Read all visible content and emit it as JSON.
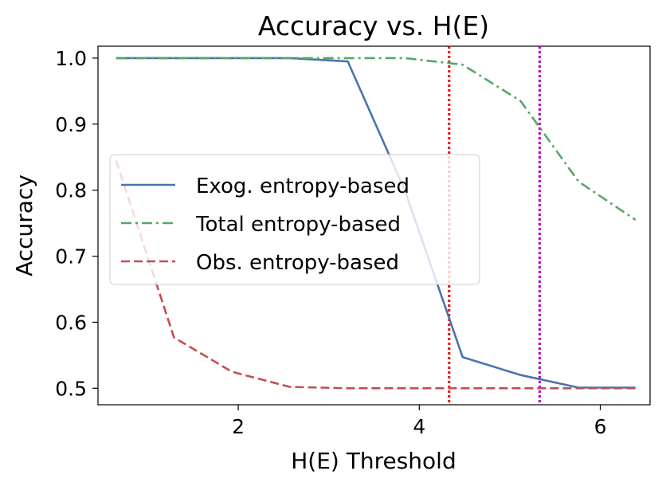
{
  "chart_data": {
    "type": "line",
    "title": "Accuracy vs. H(E)",
    "xlabel": "H(E) Threshold",
    "ylabel": "Accuracy",
    "xlim": [
      0.45,
      6.55
    ],
    "ylim": [
      0.475,
      1.018
    ],
    "xticks": [
      2,
      4,
      6
    ],
    "xtick_labels": [
      "2",
      "4",
      "6"
    ],
    "yticks": [
      0.5,
      0.6,
      0.7,
      0.8,
      0.9,
      1.0
    ],
    "ytick_labels": [
      "0.5",
      "0.6",
      "0.7",
      "0.8",
      "0.9",
      "1.0"
    ],
    "grid": false,
    "legend_position": "center-left",
    "series": [
      {
        "name": "Exog. entropy-based",
        "color": "#4c72b0",
        "style": "solid",
        "x": [
          0.65,
          1.29,
          1.93,
          2.57,
          3.21,
          3.84,
          4.48,
          5.12,
          5.76,
          6.39
        ],
        "y": [
          1.0,
          1.0,
          1.0,
          1.0,
          0.995,
          0.8,
          0.547,
          0.52,
          0.501,
          0.501
        ]
      },
      {
        "name": "Total entropy-based",
        "color": "#55a868",
        "style": "dashdot",
        "x": [
          0.65,
          1.29,
          1.93,
          2.57,
          3.21,
          3.84,
          4.48,
          5.12,
          5.76,
          6.39
        ],
        "y": [
          1.0,
          1.0,
          1.0,
          1.0,
          1.0,
          1.0,
          0.99,
          0.935,
          0.813,
          0.755
        ]
      },
      {
        "name": "Obs. entropy-based",
        "color": "#c44e52",
        "style": "dashed",
        "x": [
          0.65,
          1.29,
          1.93,
          2.57,
          3.21,
          3.84,
          4.48,
          5.12,
          5.76,
          6.39
        ],
        "y": [
          0.845,
          0.577,
          0.525,
          0.502,
          0.5,
          0.5,
          0.5,
          0.5,
          0.5,
          0.5
        ]
      }
    ],
    "vlines": [
      {
        "x": 4.33,
        "color": "#ee0000",
        "style": "dotted"
      },
      {
        "x": 5.33,
        "color": "#bb00bb",
        "style": "dotted"
      }
    ]
  }
}
